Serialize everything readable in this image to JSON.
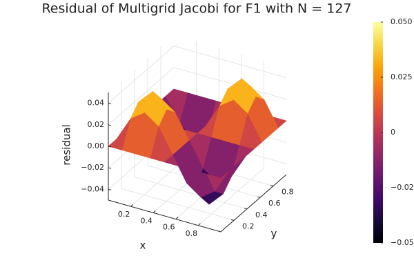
{
  "chart_data": {
    "type": "surface",
    "title": "Residual of Multigrid Jacobi for F1 with N = 127",
    "xlabel": "x",
    "ylabel": "y",
    "zlabel": "residual",
    "x": [
      0,
      0.125,
      0.25,
      0.375,
      0.5,
      0.625,
      0.75,
      0.875,
      1
    ],
    "y": [
      0,
      0.125,
      0.25,
      0.375,
      0.5,
      0.625,
      0.75,
      0.875,
      1
    ],
    "z": [
      [
        0,
        0,
        0,
        0,
        0,
        0,
        0,
        0,
        0
      ],
      [
        0,
        0.0225,
        0.0318,
        0.0225,
        0,
        -0.0225,
        -0.0318,
        -0.0225,
        0
      ],
      [
        0,
        0.0318,
        0.045,
        0.0318,
        0,
        -0.0318,
        -0.045,
        -0.0318,
        0
      ],
      [
        0,
        0.0225,
        0.0318,
        0.0225,
        0,
        -0.0225,
        -0.0318,
        -0.0225,
        0
      ],
      [
        0,
        0,
        0,
        0,
        0,
        0,
        0,
        0,
        0
      ],
      [
        0,
        -0.0225,
        -0.0318,
        -0.0225,
        0,
        0.0225,
        0.0318,
        0.0225,
        0
      ],
      [
        0,
        -0.0318,
        -0.045,
        -0.0318,
        0,
        0.0318,
        0.045,
        0.0318,
        0
      ],
      [
        0,
        -0.0225,
        -0.0318,
        -0.0225,
        0,
        0.0225,
        0.0318,
        0.0225,
        0
      ],
      [
        0,
        0,
        0,
        0,
        0,
        0,
        0,
        0,
        0
      ]
    ],
    "xlim": [
      0,
      1
    ],
    "ylim": [
      0,
      1
    ],
    "zlim": [
      -0.05,
      0.05
    ],
    "xticks": [
      0.2,
      0.4,
      0.6,
      0.8
    ],
    "yticks": [
      0.2,
      0.4,
      0.6,
      0.8
    ],
    "zticks": [
      {
        "value": -0.04,
        "label": "−0.04"
      },
      {
        "value": -0.02,
        "label": "−0.02"
      },
      {
        "value": 0,
        "label": "0.00"
      },
      0.02,
      0.04
    ],
    "colormap": "inferno",
    "clim": [
      -0.05,
      0.05
    ],
    "cticks": [
      {
        "value": 0.05,
        "label": "0.050"
      },
      0.025,
      0,
      {
        "value": -0.025,
        "label": "−0.025"
      },
      {
        "value": -0.05,
        "label": "−0.050"
      }
    ],
    "grid": true
  }
}
